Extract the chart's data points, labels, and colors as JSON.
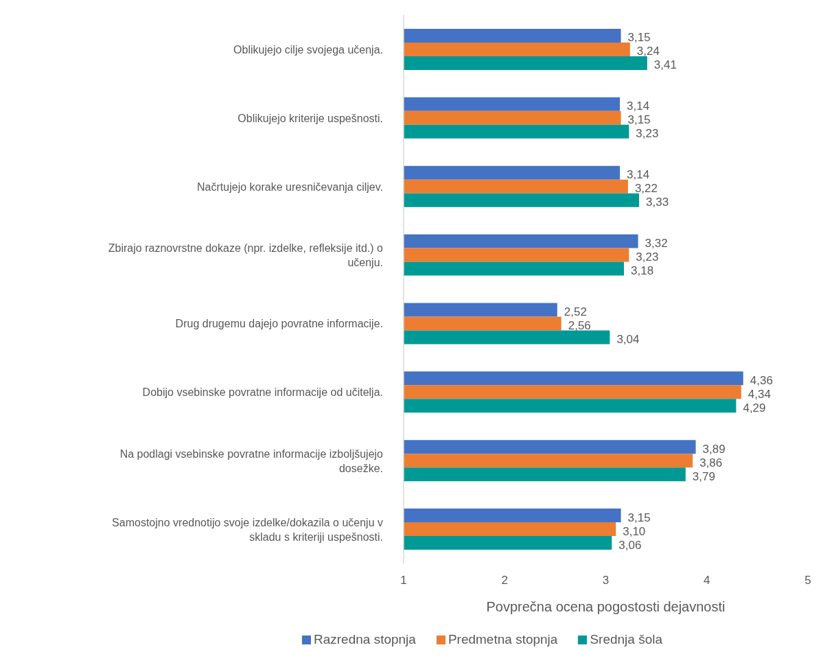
{
  "chart_data": {
    "type": "bar",
    "orientation": "horizontal",
    "categories": [
      "Oblikujejo cilje svojega učenja.",
      "Oblikujejo kriterije uspešnosti.",
      "Načrtujejo korake uresničevanja ciljev.",
      "Zbirajo raznovrstne dokaze (npr. izdelke, refleksije itd.) o učenju.",
      "Drug drugemu dajejo povratne informacije.",
      "Dobijo vsebinske povratne informacije od učitelja.",
      "Na podlagi vsebinske povratne informacije izboljšujejo dosežke.",
      "Samostojno vrednotijo svoje izdelke/dokazila o učenju v skladu s kriteriji uspešnosti."
    ],
    "series": [
      {
        "name": "Razredna stopnja",
        "color": "#4472c4",
        "values": [
          3.15,
          3.14,
          3.14,
          3.32,
          2.52,
          4.36,
          3.89,
          3.15
        ],
        "value_labels": [
          "3,15",
          "3,14",
          "3,14",
          "3,32",
          "2,52",
          "4,36",
          "3,89",
          "3,15"
        ]
      },
      {
        "name": "Predmetna stopnja",
        "color": "#ed7d31",
        "values": [
          3.24,
          3.15,
          3.22,
          3.23,
          2.56,
          4.34,
          3.86,
          3.1
        ],
        "value_labels": [
          "3,24",
          "3,15",
          "3,22",
          "3,23",
          "2,56",
          "4,34",
          "3,86",
          "3,10"
        ]
      },
      {
        "name": "Srednja šola",
        "color": "#009a96",
        "values": [
          3.41,
          3.23,
          3.33,
          3.18,
          3.04,
          4.29,
          3.79,
          3.06
        ],
        "value_labels": [
          "3,41",
          "3,23",
          "3,33",
          "3,18",
          "3,04",
          "4,29",
          "3,79",
          "3,06"
        ]
      }
    ],
    "xlim": [
      1,
      5
    ],
    "xticks": [
      1,
      2,
      3,
      4,
      5
    ],
    "xlabel": "Povprečna ocena  pogostosti dejavnosti",
    "legend": "bottom"
  }
}
